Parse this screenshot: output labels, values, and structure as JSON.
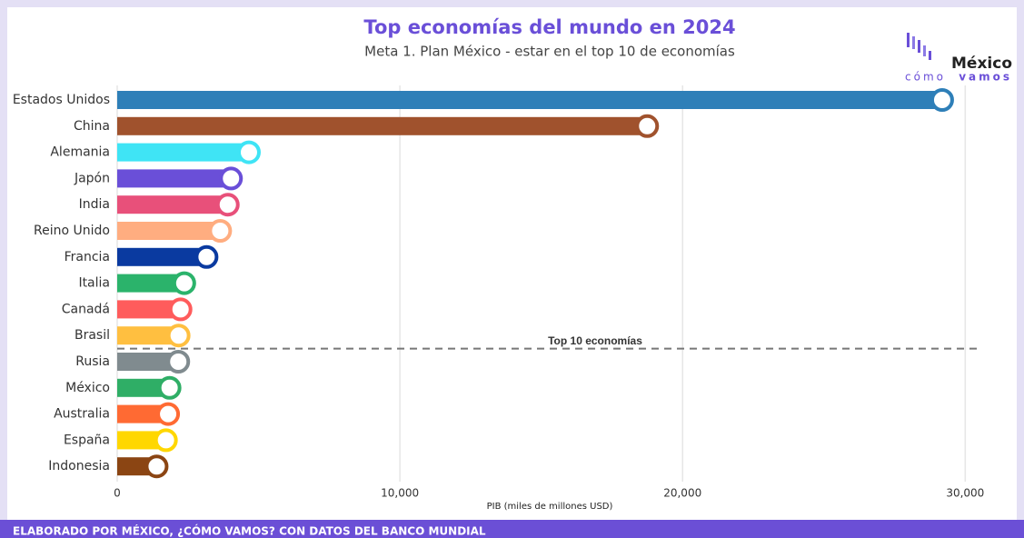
{
  "chart_data": {
    "type": "barh",
    "title": "Top economías del mundo en 2024",
    "subtitle": "Meta 1. Plan México - estar en el top 10 de economías",
    "x_label": "PIB (miles de millones USD)",
    "annotation": "Top 10 economías",
    "categories": [
      "Estados Unidos",
      "China",
      "Alemania",
      "Japón",
      "India",
      "Reino Unido",
      "Francia",
      "Italia",
      "Canadá",
      "Brasil",
      "Rusia",
      "México",
      "Australia",
      "España",
      "Indonesia"
    ],
    "values": [
      29184,
      18748,
      4660,
      4026,
      3913,
      3644,
      3162,
      2373,
      2241,
      2174,
      2161,
      1853,
      1802,
      1725,
      1396
    ],
    "colors": [
      "#2e7fb8",
      "#a0522d",
      "#3fe4f5",
      "#6a4fd8",
      "#e8507a",
      "#ffad80",
      "#0a3aa0",
      "#2bb36b",
      "#ff5c5c",
      "#ffbf40",
      "#808b8f",
      "#2fae66",
      "#ff6a33",
      "#ffd700",
      "#8b4513"
    ],
    "xlim": [
      0,
      30600
    ],
    "xticks": [
      0,
      {
        "value": 10000,
        "label": "10,000"
      },
      {
        "value": 20000,
        "label": "20,000"
      },
      {
        "value": 30000,
        "label": "30,000"
      }
    ],
    "grid": true
  },
  "logo": {
    "name": "México",
    "line1": "cómo",
    "line2": "vamos"
  },
  "footer": "ELABORADO POR MÉXICO, ¿CÓMO VAMOS? CON DATOS DEL BANCO MUNDIAL"
}
